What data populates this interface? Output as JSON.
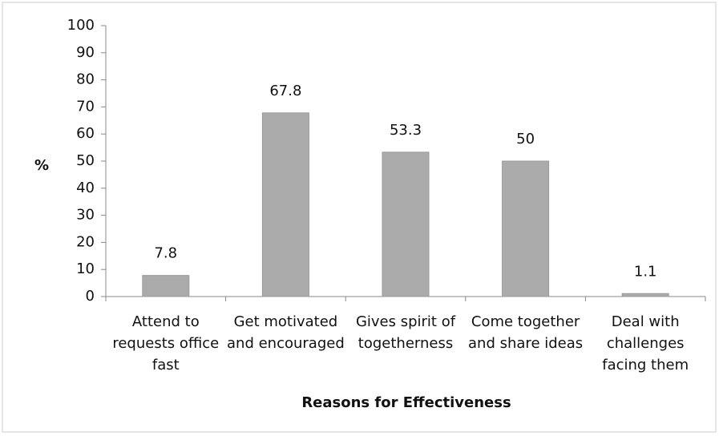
{
  "chart_data": {
    "type": "bar",
    "categories": [
      "Attend to requests office fast",
      "Get motivated and encouraged",
      "Gives spirit of togetherness",
      "Come together and share ideas",
      "Deal with challenges facing them"
    ],
    "values": [
      7.8,
      67.8,
      53.3,
      50,
      1.1
    ],
    "color": "#ababab",
    "ylabel": "%",
    "xlabel": "Reasons for Effectiveness",
    "ylim": [
      0,
      100
    ],
    "yticks": [
      0,
      10,
      20,
      30,
      40,
      50,
      60,
      70,
      80,
      90,
      100
    ],
    "grid": false
  }
}
